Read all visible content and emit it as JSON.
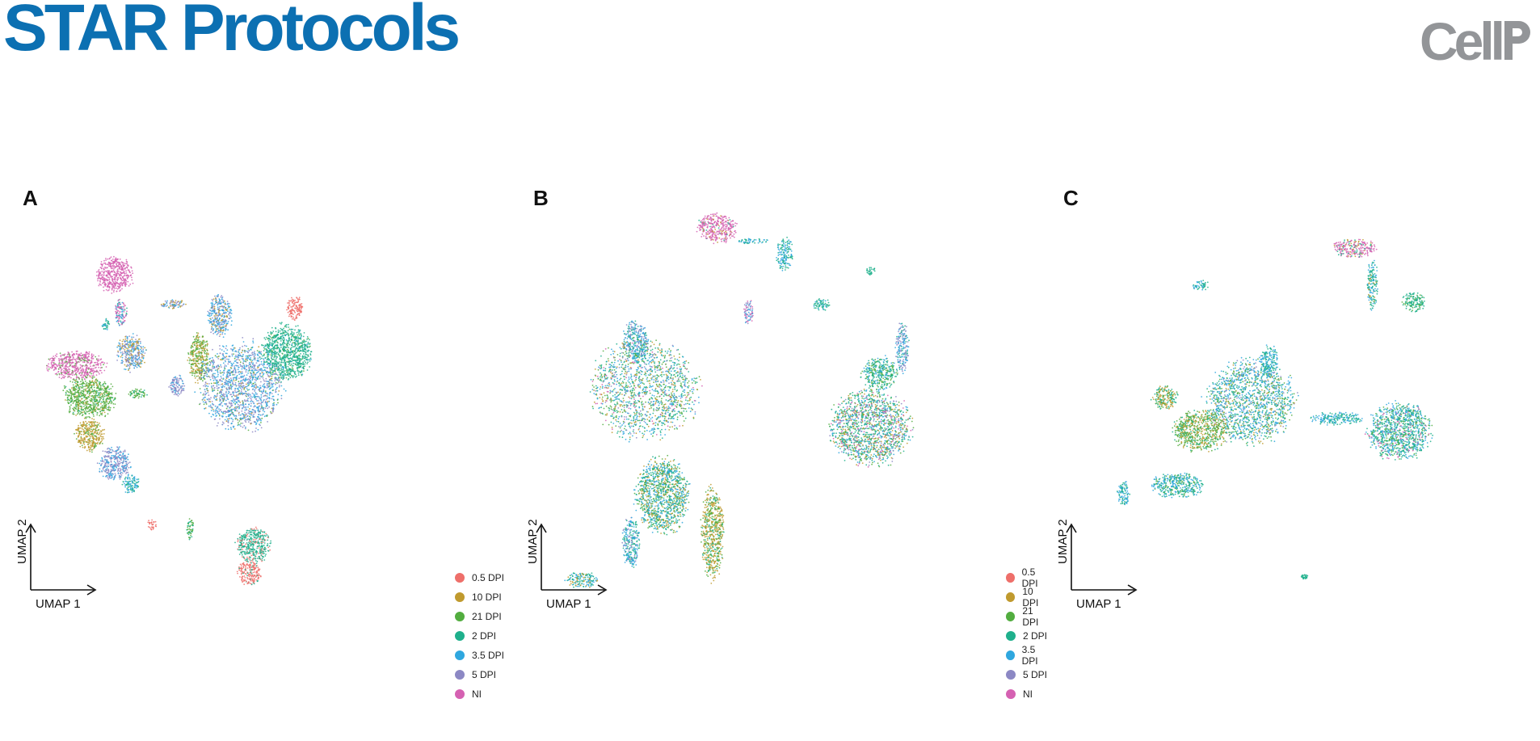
{
  "header": {
    "title": "STAR Protocols",
    "publisher_logo": "Cell"
  },
  "colors": {
    "title_blue": "#0c70b2",
    "logo_gray": "#939598",
    "groups": {
      "0.5 DPI": "#ee6f6a",
      "10 DPI": "#c09a2e",
      "21 DPI": "#52ad3f",
      "2 DPI": "#1fb08c",
      "3.5 DPI": "#2fa7df",
      "5 DPI": "#8c88c4",
      "NI": "#d561b2"
    }
  },
  "chart_data": [
    {
      "type": "scatter",
      "panel": "A",
      "xlabel": "UMAP 1",
      "ylabel": "UMAP 2",
      "grid": false,
      "legend": [
        "0.5 DPI",
        "10 DPI",
        "21 DPI",
        "2 DPI",
        "3.5 DPI",
        "5 DPI",
        "NI"
      ],
      "legend_placement": "bottom-right",
      "clusters": [
        {
          "x": 18,
          "y": 82,
          "rx": 4.5,
          "ry": 4.5,
          "comp": {
            "NI": 1
          }
        },
        {
          "x": 19.5,
          "y": 73,
          "rx": 1.5,
          "ry": 3.5,
          "comp": {
            "NI": 0.5,
            "2 DPI": 0.2,
            "3.5 DPI": 0.3
          }
        },
        {
          "x": 16,
          "y": 70,
          "rx": 1,
          "ry": 1.5,
          "comp": {
            "2 DPI": 0.7,
            "3.5 DPI": 0.3
          }
        },
        {
          "x": 9,
          "y": 60,
          "rx": 7,
          "ry": 3.5,
          "comp": {
            "NI": 0.85,
            "21 DPI": 0.15
          }
        },
        {
          "x": 12,
          "y": 52,
          "rx": 6.5,
          "ry": 5,
          "comp": {
            "21 DPI": 0.8,
            "10 DPI": 0.1,
            "2 DPI": 0.1
          }
        },
        {
          "x": 12,
          "y": 43,
          "rx": 3.5,
          "ry": 4,
          "comp": {
            "10 DPI": 0.8,
            "21 DPI": 0.2
          }
        },
        {
          "x": 18,
          "y": 36,
          "rx": 4,
          "ry": 4,
          "comp": {
            "5 DPI": 0.6,
            "3.5 DPI": 0.4
          }
        },
        {
          "x": 22,
          "y": 31,
          "rx": 2,
          "ry": 2.5,
          "comp": {
            "3.5 DPI": 0.5,
            "2 DPI": 0.5
          }
        },
        {
          "x": 27,
          "y": 21,
          "rx": 1,
          "ry": 1.5,
          "comp": {
            "0.5 DPI": 1
          }
        },
        {
          "x": 22,
          "y": 63,
          "rx": 3.5,
          "ry": 4.5,
          "comp": {
            "3.5 DPI": 0.4,
            "5 DPI": 0.3,
            "10 DPI": 0.3
          }
        },
        {
          "x": 23.5,
          "y": 53,
          "rx": 2.2,
          "ry": 1.3,
          "comp": {
            "21 DPI": 0.8,
            "2 DPI": 0.2
          }
        },
        {
          "x": 33,
          "y": 55,
          "rx": 2,
          "ry": 2.5,
          "comp": {
            "5 DPI": 0.7,
            "3.5 DPI": 0.3
          }
        },
        {
          "x": 32,
          "y": 75,
          "rx": 3,
          "ry": 1.2,
          "comp": {
            "10 DPI": 0.4,
            "3.5 DPI": 0.3,
            "5 DPI": 0.3
          }
        },
        {
          "x": 36,
          "y": 20,
          "rx": 0.8,
          "ry": 3,
          "comp": {
            "21 DPI": 0.6,
            "2 DPI": 0.4
          }
        },
        {
          "x": 38,
          "y": 62,
          "rx": 2.5,
          "ry": 6,
          "comp": {
            "10 DPI": 0.5,
            "21 DPI": 0.5
          }
        },
        {
          "x": 43,
          "y": 72,
          "rx": 3,
          "ry": 5,
          "comp": {
            "3.5 DPI": 0.5,
            "5 DPI": 0.3,
            "10 DPI": 0.2
          }
        },
        {
          "x": 48,
          "y": 55,
          "rx": 10,
          "ry": 11,
          "comp": {
            "3.5 DPI": 0.45,
            "5 DPI": 0.4,
            "21 DPI": 0.1,
            "10 DPI": 0.05
          }
        },
        {
          "x": 59,
          "y": 63,
          "rx": 6,
          "ry": 7,
          "comp": {
            "2 DPI": 0.85,
            "21 DPI": 0.1,
            "3.5 DPI": 0.05
          }
        },
        {
          "x": 61,
          "y": 74,
          "rx": 2,
          "ry": 3,
          "comp": {
            "0.5 DPI": 1
          }
        },
        {
          "x": 51,
          "y": 16,
          "rx": 4,
          "ry": 4.5,
          "comp": {
            "2 DPI": 0.8,
            "0.5 DPI": 0.2
          }
        },
        {
          "x": 50,
          "y": 9,
          "rx": 3,
          "ry": 3,
          "comp": {
            "0.5 DPI": 0.85,
            "2 DPI": 0.15
          }
        }
      ]
    },
    {
      "type": "scatter",
      "panel": "B",
      "xlabel": "UMAP 1",
      "ylabel": "UMAP 2",
      "grid": false,
      "legend": [
        "0.5 DPI",
        "10 DPI",
        "21 DPI",
        "2 DPI",
        "3.5 DPI",
        "5 DPI",
        "NI"
      ],
      "legend_placement": "bottom-right",
      "clusters": [
        {
          "x": 37,
          "y": 90,
          "rx": 4.5,
          "ry": 3.5,
          "comp": {
            "NI": 0.85,
            "10 DPI": 0.1,
            "2 DPI": 0.05
          }
        },
        {
          "x": 45,
          "y": 87,
          "rx": 4,
          "ry": 0.6,
          "comp": {
            "2 DPI": 0.5,
            "3.5 DPI": 0.5
          }
        },
        {
          "x": 52,
          "y": 84,
          "rx": 1.8,
          "ry": 4,
          "comp": {
            "2 DPI": 0.5,
            "3.5 DPI": 0.5
          }
        },
        {
          "x": 19,
          "y": 63,
          "rx": 3,
          "ry": 5,
          "comp": {
            "3.5 DPI": 0.4,
            "2 DPI": 0.3,
            "5 DPI": 0.3
          }
        },
        {
          "x": 21,
          "y": 52,
          "rx": 12,
          "ry": 12,
          "comp": {
            "2 DPI": 0.25,
            "3.5 DPI": 0.25,
            "21 DPI": 0.2,
            "10 DPI": 0.15,
            "5 DPI": 0.1,
            "NI": 0.05
          }
        },
        {
          "x": 25,
          "y": 27,
          "rx": 6,
          "ry": 9,
          "comp": {
            "2 DPI": 0.3,
            "3.5 DPI": 0.3,
            "10 DPI": 0.2,
            "21 DPI": 0.2
          }
        },
        {
          "x": 18,
          "y": 16,
          "rx": 2,
          "ry": 6,
          "comp": {
            "2 DPI": 0.4,
            "3.5 DPI": 0.4,
            "5 DPI": 0.2
          }
        },
        {
          "x": 7,
          "y": 7,
          "rx": 3.5,
          "ry": 2,
          "comp": {
            "2 DPI": 0.4,
            "3.5 DPI": 0.4,
            "10 DPI": 0.2
          }
        },
        {
          "x": 36,
          "y": 18,
          "rx": 2.5,
          "ry": 11,
          "comp": {
            "10 DPI": 0.5,
            "21 DPI": 0.3,
            "2 DPI": 0.2
          }
        },
        {
          "x": 44,
          "y": 70,
          "rx": 1,
          "ry": 3.5,
          "comp": {
            "NI": 0.4,
            "3.5 DPI": 0.3,
            "5 DPI": 0.3
          }
        },
        {
          "x": 60,
          "y": 72,
          "rx": 2,
          "ry": 1.5,
          "comp": {
            "2 DPI": 0.8,
            "3.5 DPI": 0.2
          }
        },
        {
          "x": 71,
          "y": 80,
          "rx": 1.2,
          "ry": 1,
          "comp": {
            "2 DPI": 1
          }
        },
        {
          "x": 71,
          "y": 43,
          "rx": 9,
          "ry": 9,
          "comp": {
            "2 DPI": 0.3,
            "3.5 DPI": 0.2,
            "21 DPI": 0.15,
            "10 DPI": 0.15,
            "NI": 0.1,
            "5 DPI": 0.1
          }
        },
        {
          "x": 73,
          "y": 56,
          "rx": 4,
          "ry": 4,
          "comp": {
            "2 DPI": 0.5,
            "21 DPI": 0.3,
            "3.5 DPI": 0.2
          }
        },
        {
          "x": 78,
          "y": 62,
          "rx": 1.5,
          "ry": 6,
          "comp": {
            "5 DPI": 0.4,
            "3.5 DPI": 0.4,
            "2 DPI": 0.2
          }
        }
      ]
    },
    {
      "type": "scatter",
      "panel": "C",
      "xlabel": "UMAP 1",
      "ylabel": "UMAP 2",
      "grid": false,
      "legend": [],
      "legend_placement": "none",
      "clusters": [
        {
          "x": 59,
          "y": 87,
          "rx": 5,
          "ry": 2.2,
          "comp": {
            "NI": 0.7,
            "2 DPI": 0.15,
            "10 DPI": 0.15
          }
        },
        {
          "x": 63,
          "y": 78,
          "rx": 1.2,
          "ry": 6,
          "comp": {
            "2 DPI": 0.5,
            "3.5 DPI": 0.3,
            "10 DPI": 0.2
          }
        },
        {
          "x": 25,
          "y": 78,
          "rx": 2,
          "ry": 1.2,
          "comp": {
            "2 DPI": 0.5,
            "3.5 DPI": 0.5
          }
        },
        {
          "x": 72,
          "y": 74,
          "rx": 2.5,
          "ry": 2.5,
          "comp": {
            "2 DPI": 0.8,
            "21 DPI": 0.2
          }
        },
        {
          "x": 40,
          "y": 60,
          "rx": 2,
          "ry": 4,
          "comp": {
            "2 DPI": 0.5,
            "3.5 DPI": 0.5
          }
        },
        {
          "x": 36,
          "y": 50,
          "rx": 10,
          "ry": 10,
          "comp": {
            "3.5 DPI": 0.35,
            "2 DPI": 0.3,
            "21 DPI": 0.15,
            "10 DPI": 0.1,
            "5 DPI": 0.1
          }
        },
        {
          "x": 25,
          "y": 43,
          "rx": 6,
          "ry": 5,
          "comp": {
            "21 DPI": 0.5,
            "10 DPI": 0.3,
            "2 DPI": 0.2
          }
        },
        {
          "x": 17,
          "y": 51,
          "rx": 3,
          "ry": 3,
          "comp": {
            "10 DPI": 0.5,
            "2 DPI": 0.3,
            "21 DPI": 0.2
          }
        },
        {
          "x": 20,
          "y": 30,
          "rx": 6,
          "ry": 3,
          "comp": {
            "3.5 DPI": 0.4,
            "2 DPI": 0.4,
            "21 DPI": 0.2
          }
        },
        {
          "x": 55,
          "y": 46,
          "rx": 6,
          "ry": 1.5,
          "comp": {
            "2 DPI": 0.5,
            "3.5 DPI": 0.5
          }
        },
        {
          "x": 69,
          "y": 43,
          "rx": 7,
          "ry": 7,
          "comp": {
            "2 DPI": 0.45,
            "3.5 DPI": 0.3,
            "21 DPI": 0.15,
            "NI": 0.1
          }
        },
        {
          "x": 8,
          "y": 28,
          "rx": 1.5,
          "ry": 3,
          "comp": {
            "2 DPI": 0.5,
            "3.5 DPI": 0.5
          }
        },
        {
          "x": 48,
          "y": 8,
          "rx": 0.8,
          "ry": 0.5,
          "comp": {
            "2 DPI": 1
          }
        }
      ]
    }
  ]
}
